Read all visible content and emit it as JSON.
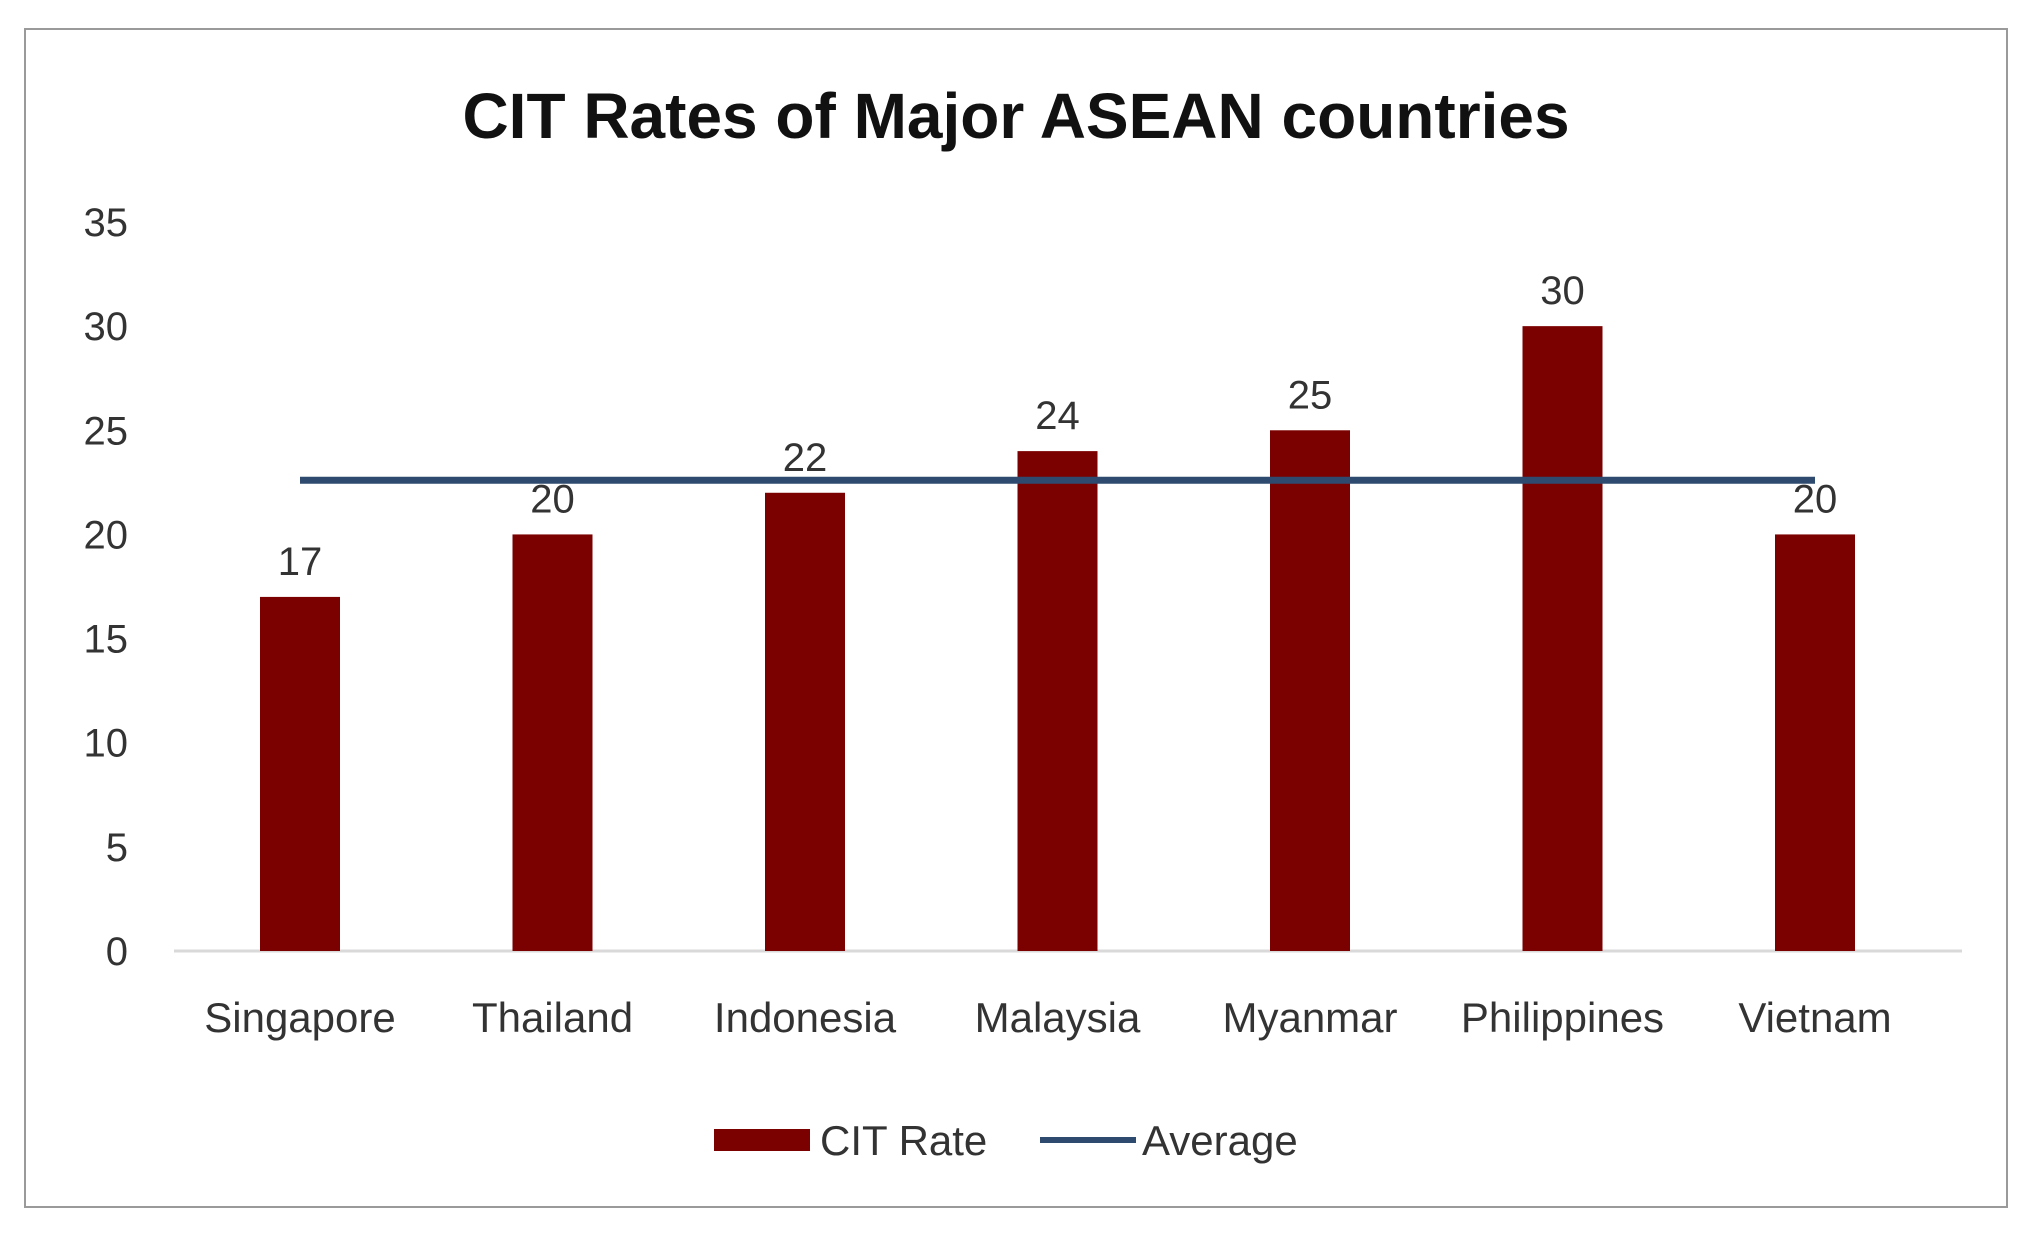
{
  "chart_data": {
    "type": "bar",
    "title": "CIT Rates of Major ASEAN countries",
    "xlabel": "",
    "ylabel": "",
    "ylim": [
      0,
      35
    ],
    "yticks": [
      0,
      5,
      10,
      15,
      20,
      25,
      30,
      35
    ],
    "grid": false,
    "categories": [
      "Singapore",
      "Thailand",
      "Indonesia",
      "Malaysia",
      "Myanmar",
      "Philippines",
      "Vietnam"
    ],
    "series": [
      {
        "name": "CIT Rate",
        "type": "bar",
        "values": [
          17,
          20,
          22,
          24,
          25,
          30,
          20
        ],
        "data_labels": [
          "17",
          "20",
          "22",
          "24",
          "25",
          "30",
          "20"
        ],
        "color": "#7b0000"
      },
      {
        "name": "Average",
        "type": "line",
        "values": [
          22.6,
          22.6,
          22.6,
          22.6,
          22.6,
          22.6,
          22.6
        ],
        "color": "#2f4a6f"
      }
    ],
    "legend": {
      "position": "bottom",
      "entries": [
        "CIT Rate",
        "Average"
      ]
    }
  }
}
